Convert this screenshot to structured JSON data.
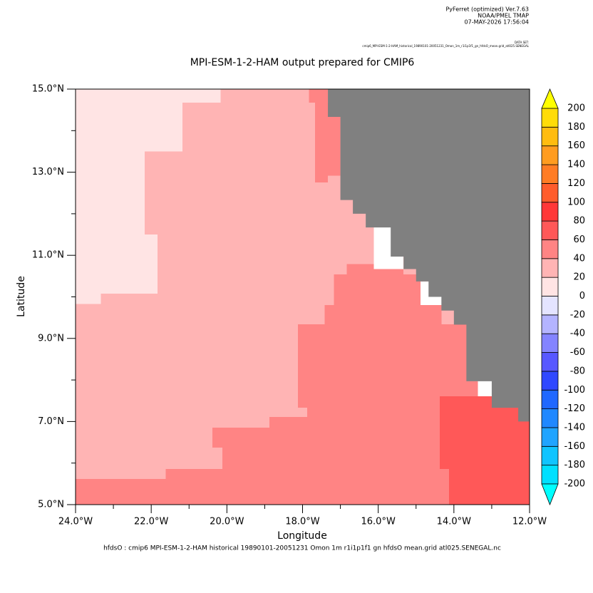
{
  "chart_data": {
    "type": "shade-map",
    "header": [
      "PyFerret (optimized) Ver.7.63",
      "NOAA/PMEL TMAP",
      "07-MAY-2026 17:56:04"
    ],
    "dataset_label": "DATA SET:",
    "dataset": "cmip6_MPI-ESM-1-2-HAM_historical_19890101-20051231_Omon_1m_r1i1p1f1_gn_hfdsO_mean.grid_atl025.SENEGAL",
    "title": "MPI-ESM-1-2-HAM output prepared for CMIP6",
    "footer": "hfdsO : cmip6 MPI-ESM-1-2-HAM historical 19890101-20051231 Omon 1m r1i1p1f1 gn hfdsO mean.grid atl025.SENEGAL.nc",
    "xlabel": "Longitude",
    "ylabel": "Latitude",
    "xlim": [
      -24,
      -12
    ],
    "ylim": [
      5,
      15
    ],
    "xticks": [
      {
        "value": -24,
        "label": "24.0°W"
      },
      {
        "value": -22,
        "label": "22.0°W"
      },
      {
        "value": -20,
        "label": "20.0°W"
      },
      {
        "value": -18,
        "label": "18.0°W"
      },
      {
        "value": -16,
        "label": "16.0°W"
      },
      {
        "value": -14,
        "label": "14.0°W"
      },
      {
        "value": -12,
        "label": "12.0°W"
      }
    ],
    "xminorticks": [
      -23,
      -21,
      -19,
      -17,
      -15,
      -13
    ],
    "yticks": [
      {
        "value": 5,
        "label": "5.0°N"
      },
      {
        "value": 7,
        "label": "7.0°N"
      },
      {
        "value": 9,
        "label": "9.0°N"
      },
      {
        "value": 11,
        "label": "11.0°N"
      },
      {
        "value": 13,
        "label": "13.0°N"
      },
      {
        "value": 15,
        "label": "15.0°N"
      }
    ],
    "yminorticks": [
      6,
      8,
      10,
      12,
      14
    ],
    "levels": [
      -200,
      -180,
      -160,
      -140,
      -120,
      -100,
      -80,
      -60,
      -40,
      -20,
      0,
      20,
      40,
      60,
      80,
      100,
      120,
      140,
      160,
      180,
      200
    ],
    "level_colors": [
      "#00e0ff",
      "#10c4ff",
      "#20a4ff",
      "#2088ff",
      "#2068ff",
      "#3048ff",
      "#5858ff",
      "#8484ff",
      "#b4b4ff",
      "#e4e4ff",
      "#ffe4e4",
      "#ffb4b4",
      "#ff8484",
      "#ff5858",
      "#ff3838",
      "#ff5c2c",
      "#ff7c24",
      "#ff9c20",
      "#ffbc10",
      "#ffdc08"
    ],
    "under_color": "#00ffff",
    "over_color": "#ffff00",
    "missing_color": "#ffffff",
    "cells": [
      {
        "lon": [
          -24,
          -12
        ],
        "lat": [
          5,
          15
        ],
        "value": 30
      },
      {
        "lon": [
          -24,
          -20.17
        ],
        "lat": [
          14.67,
          15
        ],
        "value": 10
      },
      {
        "lon": [
          -24,
          -21.17
        ],
        "lat": [
          13.5,
          14.67
        ],
        "value": 10
      },
      {
        "lon": [
          -24,
          -22.17
        ],
        "lat": [
          11.5,
          13.5
        ],
        "value": 10
      },
      {
        "lon": [
          -24,
          -21.83
        ],
        "lat": [
          10.08,
          11.5
        ],
        "value": 10
      },
      {
        "lon": [
          -24,
          -23.33
        ],
        "lat": [
          9.83,
          10.08
        ],
        "value": 10
      },
      {
        "lon": [
          -17.83,
          -17.33
        ],
        "lat": [
          14.67,
          15
        ],
        "value": 50
      },
      {
        "lon": [
          -17.67,
          -17
        ],
        "lat": [
          12.92,
          14.67
        ],
        "value": 50
      },
      {
        "lon": [
          -17.67,
          -17.33
        ],
        "lat": [
          12.75,
          12.92
        ],
        "value": 50
      },
      {
        "lon": [
          -16.83,
          -15.33
        ],
        "lat": [
          10.54,
          10.79
        ],
        "value": 50
      },
      {
        "lon": [
          -17.17,
          -14.83
        ],
        "lat": [
          9.8,
          10.54
        ],
        "value": 50
      },
      {
        "lon": [
          -17.42,
          -14.33
        ],
        "lat": [
          9.34,
          9.8
        ],
        "value": 50
      },
      {
        "lon": [
          -18.12,
          -13.67
        ],
        "lat": [
          7.97,
          9.34
        ],
        "value": 50
      },
      {
        "lon": [
          -18.12,
          -13.37
        ],
        "lat": [
          7.61,
          7.97
        ],
        "value": 50
      },
      {
        "lon": [
          -18.12,
          -14.37
        ],
        "lat": [
          7.33,
          7.61
        ],
        "value": 50
      },
      {
        "lon": [
          -17.88,
          -14.37
        ],
        "lat": [
          7.11,
          7.33
        ],
        "value": 50
      },
      {
        "lon": [
          -18.88,
          -14.37
        ],
        "lat": [
          6.85,
          7.11
        ],
        "value": 50
      },
      {
        "lon": [
          -20.38,
          -14.37
        ],
        "lat": [
          6.37,
          6.85
        ],
        "value": 50
      },
      {
        "lon": [
          -20.12,
          -14.13
        ],
        "lat": [
          5.86,
          6.37
        ],
        "value": 50
      },
      {
        "lon": [
          -21.62,
          -14.13
        ],
        "lat": [
          5.62,
          5.86
        ],
        "value": 50
      },
      {
        "lon": [
          -24,
          -14.13
        ],
        "lat": [
          5,
          5.62
        ],
        "value": 50
      },
      {
        "lon": [
          -14.37,
          -13
        ],
        "lat": [
          7.33,
          7.61
        ],
        "value": 70
      },
      {
        "lon": [
          -14.37,
          -12
        ],
        "lat": [
          5.86,
          7.33
        ],
        "value": 70
      },
      {
        "lon": [
          -14.13,
          -12
        ],
        "lat": [
          5,
          5.86
        ],
        "value": 70
      },
      {
        "lon": [
          -16.12,
          -15.33
        ],
        "lat": [
          10.67,
          11.67
        ],
        "value": null
      },
      {
        "lon": [
          -14.88,
          -14.33
        ],
        "lat": [
          9.8,
          10.37
        ],
        "value": null
      },
      {
        "lon": [
          -13.37,
          -13
        ],
        "lat": [
          7.61,
          8
        ],
        "value": null
      }
    ],
    "land": {
      "color": "#808080",
      "lon": [
        -17.33,
        -12,
        -12,
        -12.3,
        -12.3,
        -13,
        -13,
        -13.67,
        -13.67,
        -14,
        -14,
        -14.33,
        -14.33,
        -14.67,
        -14.67,
        -15,
        -15,
        -15.33,
        -15.33,
        -15.67,
        -15.67,
        -16.33,
        -16.33,
        -16.67,
        -16.67,
        -17,
        -17,
        -17.33
      ],
      "lat": [
        15,
        15,
        7,
        7,
        7.33,
        7.33,
        7.97,
        7.97,
        9.33,
        9.33,
        9.67,
        9.67,
        10,
        10,
        10.37,
        10.37,
        10.67,
        10.67,
        10.97,
        10.97,
        11.67,
        11.67,
        12,
        12,
        12.33,
        12.33,
        14.33,
        14.33
      ]
    }
  }
}
